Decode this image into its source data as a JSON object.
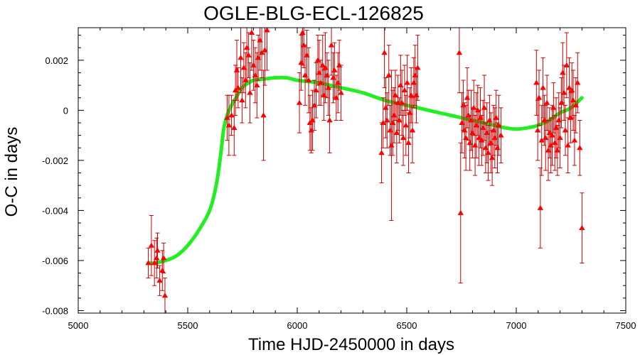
{
  "chart_data": {
    "type": "scatter",
    "title": "OGLE-BLG-ECL-126825",
    "xlabel": "Time HJD-2450000 in days",
    "ylabel": "O-C in days",
    "xlim": [
      5000,
      7500
    ],
    "ylim": [
      -0.0081,
      0.0033
    ],
    "x_ticks": [
      5000,
      5500,
      6000,
      6500,
      7000,
      7500
    ],
    "x_tick_labels": [
      "5000",
      "5500",
      "6000",
      "6500",
      "7000",
      "7500"
    ],
    "y_ticks": [
      -0.008,
      -0.006,
      -0.004,
      -0.002,
      0,
      0.002
    ],
    "y_tick_labels": [
      "-0.008",
      "-0.006",
      "-0.004",
      "-0.002",
      "0",
      "0.002"
    ],
    "grid": false,
    "colors": {
      "points": "#ff0000",
      "errorbars": "#cc0000",
      "fit": "#22ee22",
      "axes": "#000000"
    },
    "series": [
      {
        "kind": "points_with_errorbars",
        "points": [
          {
            "x": 5320,
            "y": -0.0061,
            "err": 0.0006
          },
          {
            "x": 5334,
            "y": -0.0054,
            "err": 0.0012
          },
          {
            "x": 5348,
            "y": -0.0061,
            "err": 0.0009
          },
          {
            "x": 5358,
            "y": -0.0059,
            "err": 0.0008
          },
          {
            "x": 5362,
            "y": -0.0056,
            "err": 0.0007
          },
          {
            "x": 5372,
            "y": -0.0068,
            "err": 0.0006
          },
          {
            "x": 5384,
            "y": -0.0064,
            "err": 0.0008
          },
          {
            "x": 5390,
            "y": -0.0059,
            "err": 0.0006
          },
          {
            "x": 5396,
            "y": -0.0074,
            "err": 0.0007
          },
          {
            "x": 5680,
            "y": -0.0003,
            "err": 0.0009
          },
          {
            "x": 5688,
            "y": -0.0006,
            "err": 0.0012
          },
          {
            "x": 5700,
            "y": -0.0002,
            "err": 0.0008
          },
          {
            "x": 5712,
            "y": -0.0007,
            "err": 0.0011
          },
          {
            "x": 5718,
            "y": 0.0008,
            "err": 0.001
          },
          {
            "x": 5724,
            "y": 0.0016,
            "err": 0.0012
          },
          {
            "x": 5730,
            "y": 0.0009,
            "err": 0.0008
          },
          {
            "x": 5742,
            "y": 0.0021,
            "err": 0.0014
          },
          {
            "x": 5748,
            "y": 0.0004,
            "err": 0.0009
          },
          {
            "x": 5756,
            "y": 0.0017,
            "err": 0.001
          },
          {
            "x": 5764,
            "y": 0.0012,
            "err": 0.0011
          },
          {
            "x": 5770,
            "y": 0.0025,
            "err": 0.0013
          },
          {
            "x": 5778,
            "y": 0.0022,
            "err": 0.0009
          },
          {
            "x": 5784,
            "y": 0.0007,
            "err": 0.0012
          },
          {
            "x": 5792,
            "y": 0.0031,
            "err": 0.0015
          },
          {
            "x": 5800,
            "y": 0.0018,
            "err": 0.001
          },
          {
            "x": 5808,
            "y": 0.0014,
            "err": 0.0011
          },
          {
            "x": 5816,
            "y": 0.001,
            "err": 0.0013
          },
          {
            "x": 5822,
            "y": 0.0021,
            "err": 0.0009
          },
          {
            "x": 5830,
            "y": 0.0028,
            "err": 0.0012
          },
          {
            "x": 5838,
            "y": 0.0023,
            "err": 0.001
          },
          {
            "x": 5846,
            "y": -0.0002,
            "err": 0.0018
          },
          {
            "x": 5852,
            "y": 0.0024,
            "err": 0.0014
          },
          {
            "x": 5862,
            "y": 0.0032,
            "err": 0.0016
          },
          {
            "x": 6010,
            "y": 0.0003,
            "err": 0.0012
          },
          {
            "x": 6018,
            "y": 0.0019,
            "err": 0.0011
          },
          {
            "x": 6024,
            "y": 0.0031,
            "err": 0.0013
          },
          {
            "x": 6030,
            "y": 0.0026,
            "err": 0.0009
          },
          {
            "x": 6036,
            "y": 0.0014,
            "err": 0.0012
          },
          {
            "x": 6044,
            "y": 0.0022,
            "err": 0.001
          },
          {
            "x": 6052,
            "y": 0.0012,
            "err": 0.0013
          },
          {
            "x": 6058,
            "y": -0.0005,
            "err": 0.0011
          },
          {
            "x": 6064,
            "y": -0.0008,
            "err": 0.0009
          },
          {
            "x": 6070,
            "y": -0.0004,
            "err": 0.0012
          },
          {
            "x": 6078,
            "y": 0.0002,
            "err": 0.001
          },
          {
            "x": 6086,
            "y": 0.0008,
            "err": 0.0011
          },
          {
            "x": 6094,
            "y": 0.002,
            "err": 0.001
          },
          {
            "x": 6100,
            "y": 0.0015,
            "err": 0.0013
          },
          {
            "x": 6108,
            "y": 0.0011,
            "err": 0.0009
          },
          {
            "x": 6116,
            "y": 0.0018,
            "err": 0.0012
          },
          {
            "x": 6122,
            "y": 0.0006,
            "err": 0.001
          },
          {
            "x": 6128,
            "y": 0.0017,
            "err": 0.0014
          },
          {
            "x": 6136,
            "y": 0.0014,
            "err": 0.0009
          },
          {
            "x": 6142,
            "y": 0.0009,
            "err": 0.0011
          },
          {
            "x": 6148,
            "y": -0.0004,
            "err": 0.0013
          },
          {
            "x": 6156,
            "y": 0.0026,
            "err": 0.0012
          },
          {
            "x": 6164,
            "y": 0.0013,
            "err": 0.001
          },
          {
            "x": 6170,
            "y": 0.0016,
            "err": 0.0011
          },
          {
            "x": 6178,
            "y": 0.0005,
            "err": 0.0009
          },
          {
            "x": 6186,
            "y": 0.0011,
            "err": 0.0012
          },
          {
            "x": 6192,
            "y": 0.0018,
            "err": 0.001
          },
          {
            "x": 6200,
            "y": 0.0007,
            "err": 0.0011
          },
          {
            "x": 6385,
            "y": -0.0017,
            "err": 0.0012
          },
          {
            "x": 6392,
            "y": -0.0005,
            "err": 0.001
          },
          {
            "x": 6398,
            "y": 0.0023,
            "err": 0.0014
          },
          {
            "x": 6404,
            "y": 0.0001,
            "err": 0.0012
          },
          {
            "x": 6410,
            "y": -0.0004,
            "err": 0.0011
          },
          {
            "x": 6418,
            "y": 0.0014,
            "err": 0.0012
          },
          {
            "x": 6424,
            "y": -0.0008,
            "err": 0.001
          },
          {
            "x": 6430,
            "y": -0.0014,
            "err": 0.003
          },
          {
            "x": 6436,
            "y": -0.0005,
            "err": 0.0013
          },
          {
            "x": 6442,
            "y": -0.0002,
            "err": 0.0011
          },
          {
            "x": 6448,
            "y": 0.0006,
            "err": 0.001
          },
          {
            "x": 6454,
            "y": -0.0009,
            "err": 0.0012
          },
          {
            "x": 6460,
            "y": 0.0003,
            "err": 0.0011
          },
          {
            "x": 6466,
            "y": -0.0004,
            "err": 0.0009
          },
          {
            "x": 6472,
            "y": 0.001,
            "err": 0.0012
          },
          {
            "x": 6478,
            "y": 0.0003,
            "err": 0.0013
          },
          {
            "x": 6484,
            "y": -0.0011,
            "err": 0.0011
          },
          {
            "x": 6490,
            "y": 0.0008,
            "err": 0.001
          },
          {
            "x": 6496,
            "y": -0.0006,
            "err": 0.0012
          },
          {
            "x": 6502,
            "y": 0.0011,
            "err": 0.0011
          },
          {
            "x": 6508,
            "y": -0.0013,
            "err": 0.0012
          },
          {
            "x": 6514,
            "y": -0.0001,
            "err": 0.001
          },
          {
            "x": 6520,
            "y": 0.0006,
            "err": 0.0011
          },
          {
            "x": 6526,
            "y": -0.0008,
            "err": 0.0013
          },
          {
            "x": 6532,
            "y": 0.0011,
            "err": 0.001
          },
          {
            "x": 6538,
            "y": 0.0014,
            "err": 0.0012
          },
          {
            "x": 6544,
            "y": 0.0006,
            "err": 0.0011
          },
          {
            "x": 6550,
            "y": 0.0017,
            "err": 0.0013
          },
          {
            "x": 6740,
            "y": 0.0023,
            "err": 0.0016
          },
          {
            "x": 6746,
            "y": -0.0041,
            "err": 0.0028
          },
          {
            "x": 6752,
            "y": -0.0005,
            "err": 0.0012
          },
          {
            "x": 6758,
            "y": 0.0002,
            "err": 0.001
          },
          {
            "x": 6764,
            "y": -0.0008,
            "err": 0.0011
          },
          {
            "x": 6770,
            "y": -0.0011,
            "err": 0.0013
          },
          {
            "x": 6776,
            "y": 0.0005,
            "err": 0.0012
          },
          {
            "x": 6782,
            "y": -0.0002,
            "err": 0.001
          },
          {
            "x": 6788,
            "y": -0.0013,
            "err": 0.0011
          },
          {
            "x": 6794,
            "y": -0.0004,
            "err": 0.0012
          },
          {
            "x": 6800,
            "y": -0.0009,
            "err": 0.001
          },
          {
            "x": 6806,
            "y": 0.0001,
            "err": 0.0011
          },
          {
            "x": 6812,
            "y": -0.0014,
            "err": 0.0012
          },
          {
            "x": 6818,
            "y": -0.0006,
            "err": 0.0013
          },
          {
            "x": 6824,
            "y": 0.0,
            "err": 0.001
          },
          {
            "x": 6830,
            "y": -0.0011,
            "err": 0.0011
          },
          {
            "x": 6836,
            "y": -0.0003,
            "err": 0.0012
          },
          {
            "x": 6842,
            "y": -0.0012,
            "err": 0.001
          },
          {
            "x": 6848,
            "y": -0.0007,
            "err": 0.0011
          },
          {
            "x": 6854,
            "y": 0.0001,
            "err": 0.0013
          },
          {
            "x": 6860,
            "y": -0.0015,
            "err": 0.001
          },
          {
            "x": 6866,
            "y": -0.0009,
            "err": 0.0012
          },
          {
            "x": 6872,
            "y": -0.0017,
            "err": 0.0011
          },
          {
            "x": 6878,
            "y": -0.0004,
            "err": 0.001
          },
          {
            "x": 6884,
            "y": -0.0013,
            "err": 0.0012
          },
          {
            "x": 6890,
            "y": -0.0019,
            "err": 0.0011
          },
          {
            "x": 6896,
            "y": -0.0008,
            "err": 0.001
          },
          {
            "x": 6902,
            "y": -0.0011,
            "err": 0.0012
          },
          {
            "x": 6908,
            "y": -0.0003,
            "err": 0.0011
          },
          {
            "x": 6914,
            "y": -0.0015,
            "err": 0.001
          },
          {
            "x": 6920,
            "y": -0.0006,
            "err": 0.0012
          },
          {
            "x": 6930,
            "y": -0.001,
            "err": 0.0011
          },
          {
            "x": 7092,
            "y": 0.0011,
            "err": 0.0013
          },
          {
            "x": 7098,
            "y": -0.0008,
            "err": 0.0012
          },
          {
            "x": 7104,
            "y": 0.0005,
            "err": 0.0011
          },
          {
            "x": 7110,
            "y": -0.0039,
            "err": 0.0016
          },
          {
            "x": 7116,
            "y": -0.0012,
            "err": 0.0014
          },
          {
            "x": 7122,
            "y": 0.0009,
            "err": 0.0012
          },
          {
            "x": 7128,
            "y": -0.0004,
            "err": 0.001
          },
          {
            "x": 7134,
            "y": -0.0011,
            "err": 0.0013
          },
          {
            "x": 7140,
            "y": 0.0003,
            "err": 0.0011
          },
          {
            "x": 7146,
            "y": -0.0016,
            "err": 0.0012
          },
          {
            "x": 7152,
            "y": -0.0009,
            "err": 0.001
          },
          {
            "x": 7158,
            "y": -0.0014,
            "err": 0.0011
          },
          {
            "x": 7164,
            "y": -0.001,
            "err": 0.0012
          },
          {
            "x": 7170,
            "y": 0.0001,
            "err": 0.001
          },
          {
            "x": 7176,
            "y": -0.0013,
            "err": 0.0011
          },
          {
            "x": 7182,
            "y": -0.0007,
            "err": 0.0012
          },
          {
            "x": 7188,
            "y": -0.0016,
            "err": 0.001
          },
          {
            "x": 7194,
            "y": -0.0004,
            "err": 0.0011
          },
          {
            "x": 7200,
            "y": -0.0011,
            "err": 0.0012
          },
          {
            "x": 7206,
            "y": 0.0003,
            "err": 0.001
          },
          {
            "x": 7212,
            "y": 0.0015,
            "err": 0.0012
          },
          {
            "x": 7218,
            "y": 0.0007,
            "err": 0.0011
          },
          {
            "x": 7224,
            "y": -0.0008,
            "err": 0.001
          },
          {
            "x": 7230,
            "y": 0.0018,
            "err": 0.0013
          },
          {
            "x": 7236,
            "y": -0.0014,
            "err": 0.0011
          },
          {
            "x": 7242,
            "y": 0.0009,
            "err": 0.0012
          },
          {
            "x": 7248,
            "y": -0.0003,
            "err": 0.001
          },
          {
            "x": 7254,
            "y": 0.0008,
            "err": 0.0011
          },
          {
            "x": 7260,
            "y": 0.0004,
            "err": 0.0012
          },
          {
            "x": 7266,
            "y": -0.0012,
            "err": 0.001
          },
          {
            "x": 7272,
            "y": 0.0002,
            "err": 0.0011
          },
          {
            "x": 7280,
            "y": 0.0011,
            "err": 0.0012
          },
          {
            "x": 7290,
            "y": -0.0015,
            "err": 0.0011
          },
          {
            "x": 7300,
            "y": -0.0047,
            "err": 0.0014
          }
        ]
      },
      {
        "kind": "fit_curve",
        "x": [
          5320,
          5350,
          5400,
          5450,
          5500,
          5550,
          5600,
          5630,
          5650,
          5665,
          5680,
          5700,
          5720,
          5740,
          5760,
          5780,
          5800,
          5850,
          5900,
          5950,
          6000,
          6050,
          6100,
          6150,
          6200,
          6300,
          6400,
          6500,
          6600,
          6700,
          6800,
          6900,
          6950,
          7000,
          7050,
          7100,
          7150,
          7200,
          7250,
          7300
        ],
        "y": [
          -0.0061,
          -0.0061,
          -0.006,
          -0.0058,
          -0.0054,
          -0.0048,
          -0.004,
          -0.003,
          -0.0018,
          -0.0007,
          -0.0002,
          0.0002,
          0.0005,
          0.0008,
          0.001,
          0.0011,
          0.0012,
          0.00125,
          0.0013,
          0.0013,
          0.0012,
          0.00115,
          0.0011,
          0.001,
          0.0009,
          0.0007,
          0.0004,
          0.0002,
          0.0,
          -0.0002,
          -0.0004,
          -0.0006,
          -0.0007,
          -0.00075,
          -0.0007,
          -0.0006,
          -0.0004,
          -0.0001,
          0.0001,
          0.0005
        ]
      }
    ]
  }
}
